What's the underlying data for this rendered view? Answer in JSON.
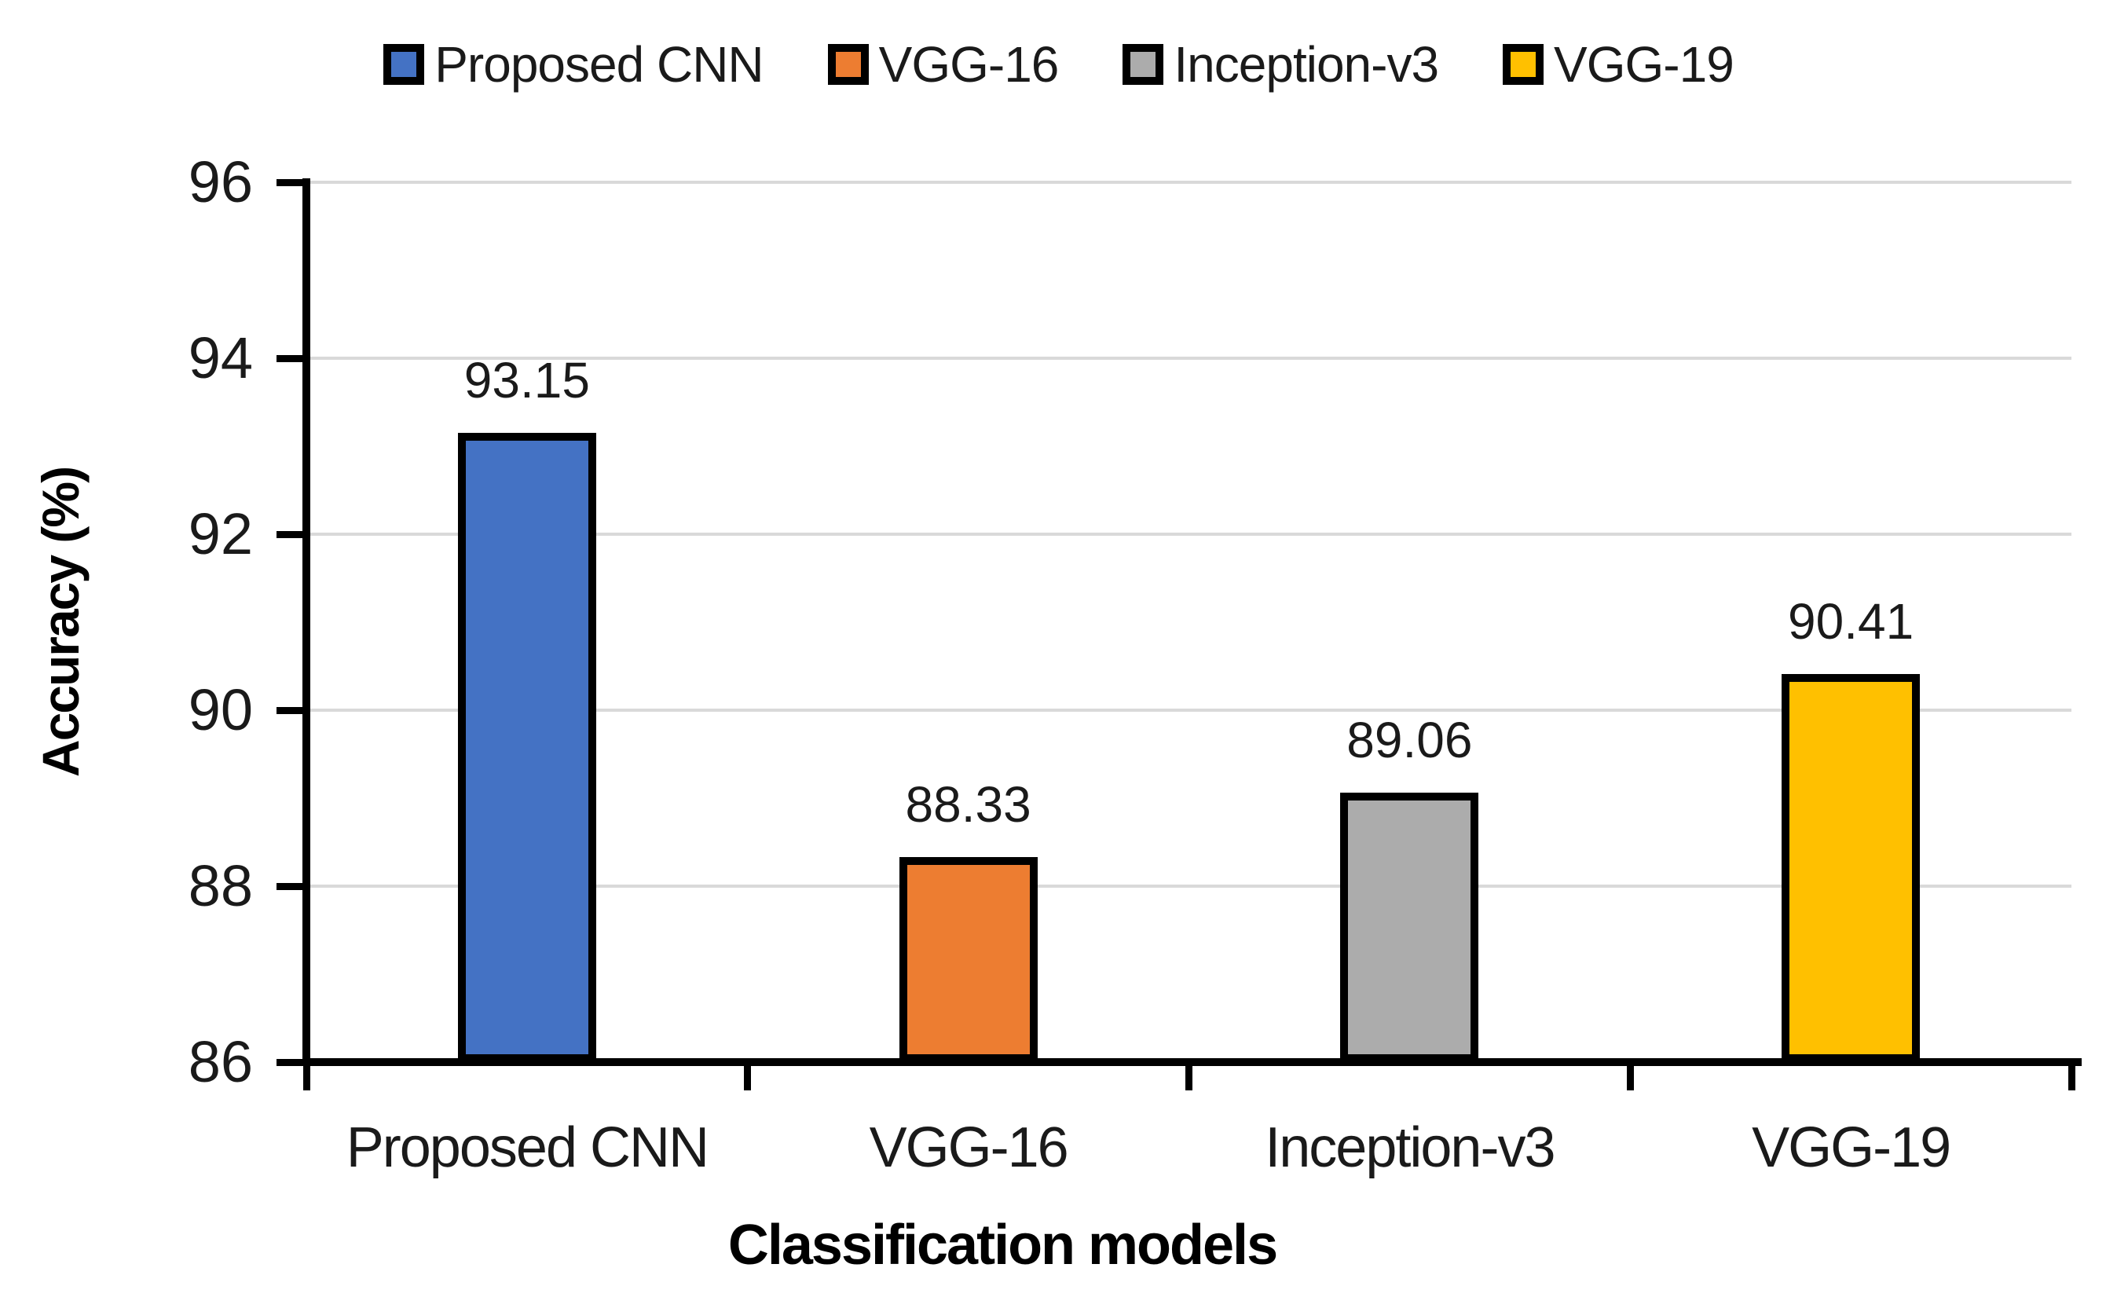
{
  "chart_data": {
    "type": "bar",
    "title": "",
    "categories": [
      "Proposed CNN",
      "VGG-16",
      "Inception-v3",
      "VGG-19"
    ],
    "values": [
      93.15,
      88.33,
      89.06,
      90.41
    ],
    "value_labels": [
      "93.15",
      "88.33",
      "89.06",
      "90.41"
    ],
    "series_colors": [
      "#4472C4",
      "#ED7D31",
      "#ACACAC",
      "#FFC000"
    ],
    "legend_entries": [
      "Proposed CNN",
      "VGG-16",
      "Inception-v3",
      "VGG-19"
    ],
    "legend_position": "top",
    "xlabel": "Classification models",
    "ylabel": "Accuracy (%)",
    "ylim": [
      86,
      96
    ],
    "y_ticks": [
      "96",
      "94",
      "92",
      "90",
      "88",
      "86"
    ],
    "y_tick_values": [
      96,
      94,
      92,
      90,
      88,
      86
    ],
    "grid": true,
    "gridline_color": "#D9D9D9",
    "axis_color": "#000000",
    "bar_border_color": "#000000",
    "text_color": "#1a1a1a"
  }
}
